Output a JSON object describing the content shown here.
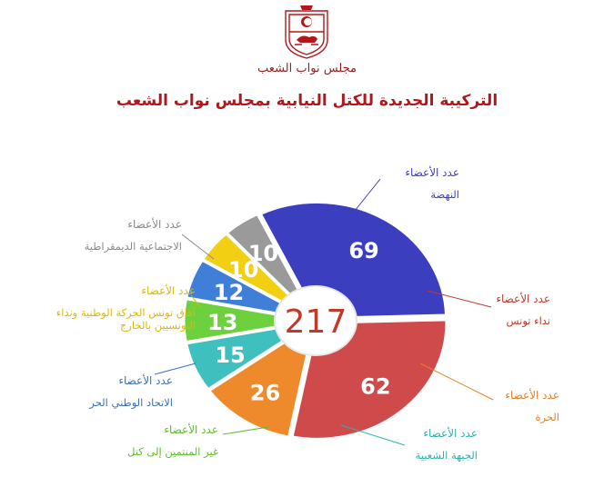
{
  "header": {
    "org_name": "مجلس نواب الشعب",
    "title": "التركيبة الجديدة للكتل النيابية بمجلس نواب الشعب"
  },
  "chart_data": {
    "type": "pie",
    "total": "217",
    "slices": [
      {
        "label": "النهضة",
        "sub": "عدد الأعضاء",
        "value": 69,
        "color": "#3b3fbf"
      },
      {
        "label": "نداء تونس",
        "sub": "عدد الأعضاء",
        "value": 62,
        "color": "#cf4b4b"
      },
      {
        "label": "الحرة",
        "sub": "عدد الأعضاء",
        "value": 26,
        "color": "#ef8a2c"
      },
      {
        "label": "الجبهة الشعبية",
        "sub": "عدد الأعضاء",
        "value": 15,
        "color": "#3fbfbe"
      },
      {
        "label": "غير المنتمين إلى كتل",
        "sub": "عدد الأعضاء",
        "value": 13,
        "color": "#6dd13e"
      },
      {
        "label": "الاتحاد الوطني الحر",
        "sub": "عدد الأعضاء",
        "value": 12,
        "color": "#3f7fd8"
      },
      {
        "label": "آفاق تونس الحركة الوطنية ونداء التونسيين بالخارج",
        "sub": "عدد الأعضاء",
        "value": 10,
        "color": "#f2cf12"
      },
      {
        "label": "الاجتماعية الديمقراطية",
        "sub": "عدد الأعضاء",
        "value": 10,
        "color": "#9a9a9a"
      }
    ],
    "label_colors": [
      "#3b3fbf",
      "#c0392b",
      "#e67e22",
      "#2bb3ad",
      "#5cbf2a",
      "#3a6fc0",
      "#e0b800",
      "#8a8a8a"
    ]
  }
}
